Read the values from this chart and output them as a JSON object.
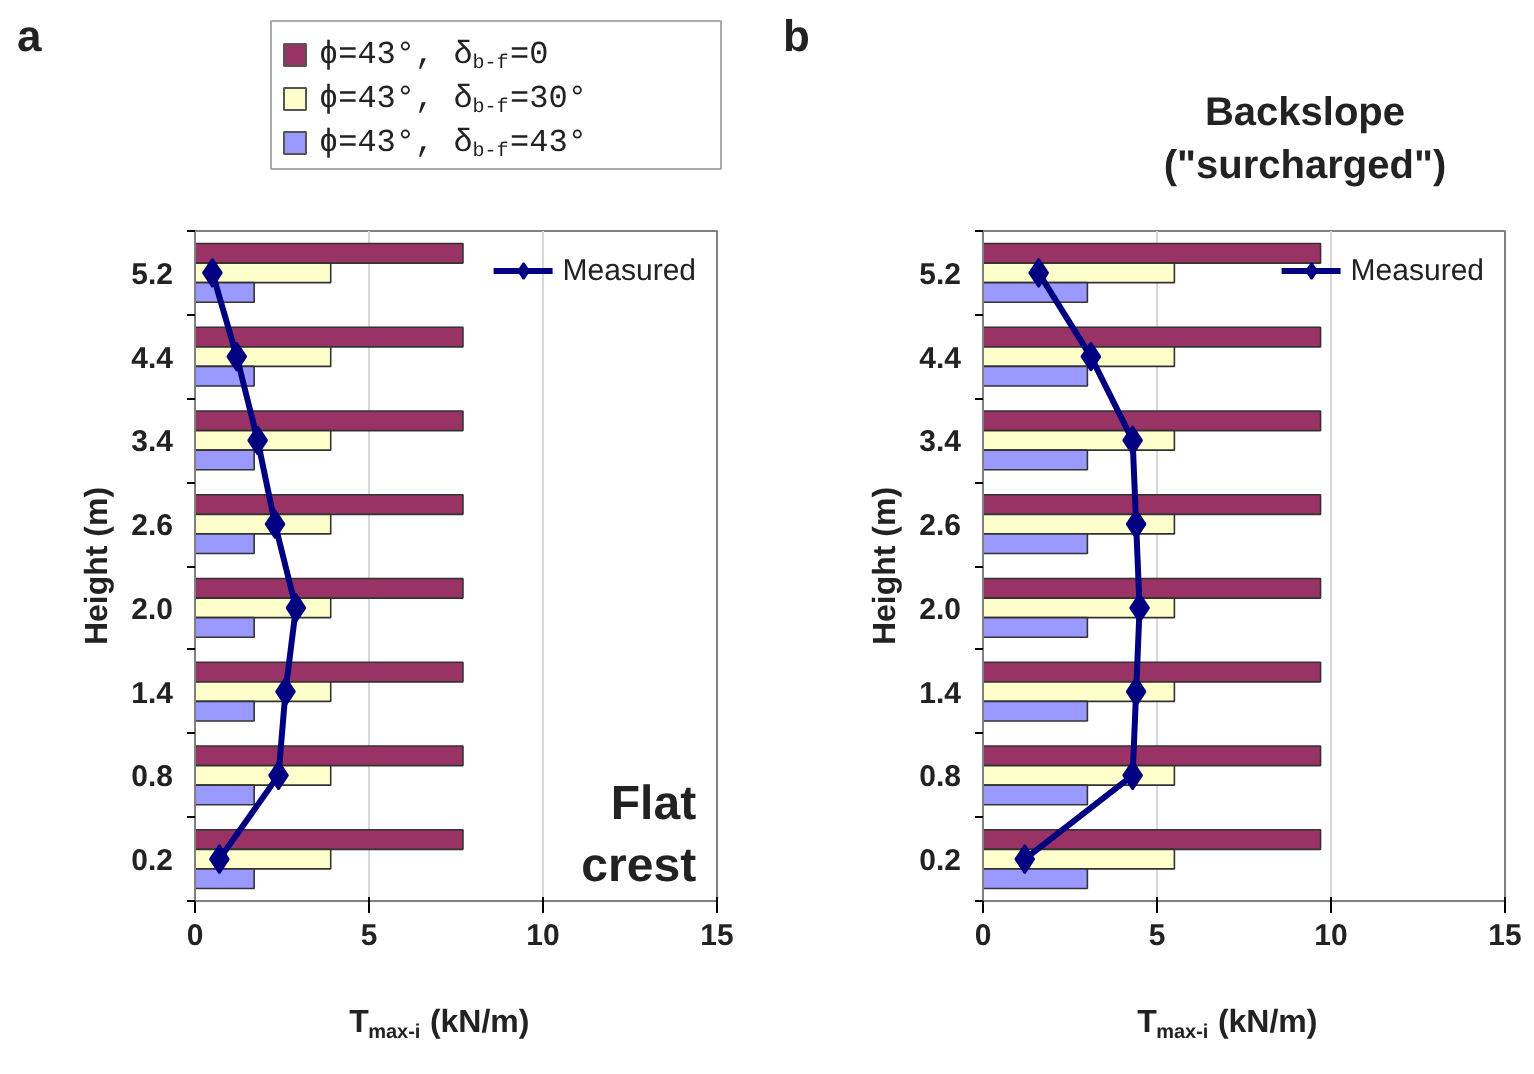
{
  "chart_data": [
    {
      "type": "bar",
      "orientation": "horizontal",
      "title": "a",
      "categories": [
        "5.2",
        "4.4",
        "3.4",
        "2.6",
        "2.0",
        "1.4",
        "0.8",
        "0.2"
      ],
      "series": [
        {
          "name": "ϕ=43°, δ$_{b-f}$=0",
          "color": "#993366",
          "values": [
            7.7,
            7.7,
            7.7,
            7.7,
            7.7,
            7.7,
            7.7,
            7.7
          ]
        },
        {
          "name": "ϕ=43°, δ$_{b-f}$=30°",
          "color": "#ffffcc",
          "values": [
            3.9,
            3.9,
            3.9,
            3.9,
            3.9,
            3.9,
            3.9,
            3.9
          ]
        },
        {
          "name": "ϕ=43°, δ$_{b-f}$=43°",
          "color": "#9999ff",
          "values": [
            1.7,
            1.7,
            1.7,
            1.7,
            1.7,
            1.7,
            1.7,
            1.7
          ]
        },
        {
          "type": "line",
          "name": "Measured",
          "color": "#000080",
          "x": [
            "5.2",
            "4.4",
            "3.4",
            "2.6",
            "2.0",
            "1.4",
            "0.8",
            "0.2"
          ],
          "values": [
            0.5,
            1.2,
            1.8,
            2.3,
            2.9,
            2.6,
            2.4,
            0.7
          ]
        }
      ],
      "xlim": [
        0,
        15
      ],
      "xticks": [
        0,
        5,
        10,
        15
      ],
      "xlabel": "T$_{max-i}$ (kN/m)",
      "ylabel": "Height (m)",
      "grid": "x",
      "legend": "top",
      "marker": "diamond",
      "annotations": [
        "Flat\ncrest"
      ]
    },
    {
      "type": "bar",
      "orientation": "horizontal",
      "title": "b",
      "categories": [
        "5.2",
        "4.4",
        "3.4",
        "2.6",
        "2.0",
        "1.4",
        "0.8",
        "0.2"
      ],
      "series": [
        {
          "color": "#993366",
          "values": [
            9.7,
            9.7,
            9.7,
            9.7,
            9.7,
            9.7,
            9.7,
            9.7
          ]
        },
        {
          "color": "#ffffcc",
          "values": [
            5.5,
            5.5,
            5.5,
            5.5,
            5.5,
            5.5,
            5.5,
            5.5
          ]
        },
        {
          "color": "#9999ff",
          "values": [
            3.0,
            3.0,
            3.0,
            3.0,
            3.0,
            3.0,
            3.0,
            3.0
          ]
        },
        {
          "type": "line",
          "name": "Measured",
          "color": "#000080",
          "x": [
            "5.2",
            "4.4",
            "3.4",
            "2.6",
            "2.0",
            "1.4",
            "0.8",
            "0.2"
          ],
          "values": [
            1.6,
            3.1,
            4.3,
            4.4,
            4.5,
            4.4,
            4.3,
            1.2
          ]
        }
      ],
      "xlim": [
        0,
        15
      ],
      "xticks": [
        0,
        5,
        10,
        15
      ],
      "xlabel": "T$_{max-i}$ (kN/m)",
      "ylabel": "Height (m)",
      "grid": "x",
      "legend": "top right",
      "marker": "diamond",
      "annotations": [
        "Backslope\n(\"surcharged\")"
      ]
    }
  ]
}
